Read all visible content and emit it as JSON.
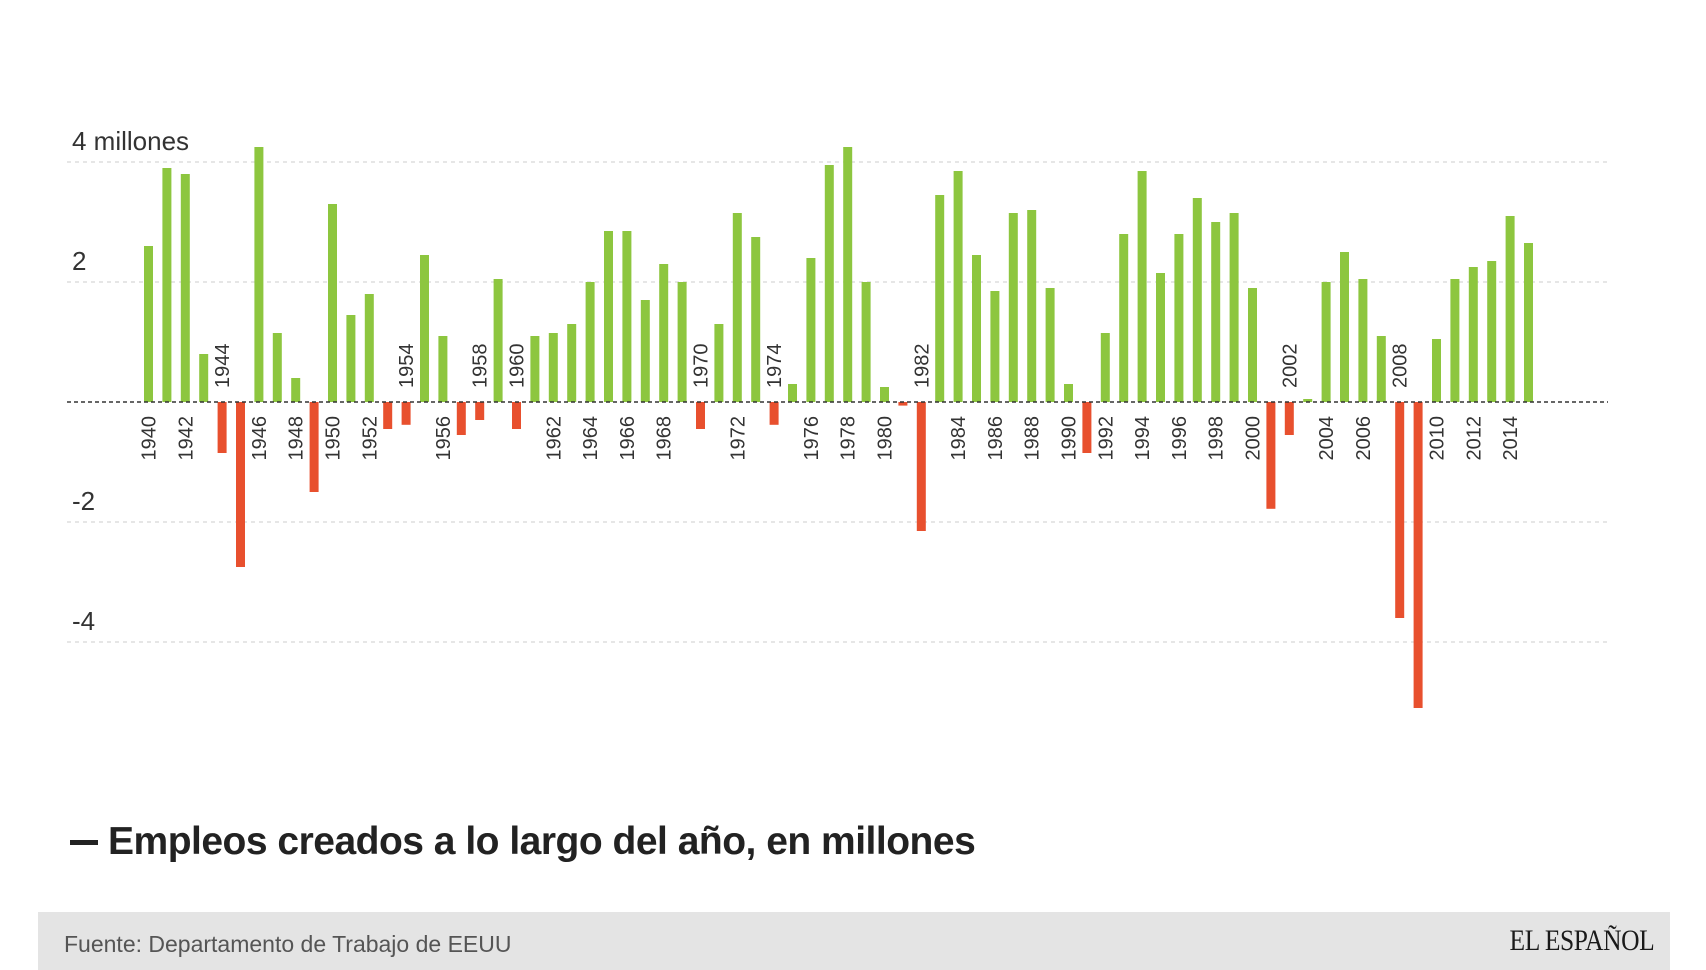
{
  "colors": {
    "positive": "#8dc63f",
    "negative": "#e8502e",
    "grid": "#cccccc",
    "baseline": "#333333"
  },
  "legend": {
    "label": "Empleos creados a lo largo del año, en millones"
  },
  "footer": {
    "source": "Fuente: Departamento de Trabajo de EEUU",
    "logo": "EL ESPAÑOL"
  },
  "chart_data": {
    "type": "bar",
    "title": "",
    "xlabel": "",
    "ylabel": "",
    "ylim": [
      -5.2,
      4.3
    ],
    "grid": "horizontal dashed",
    "y_ticks": [
      {
        "value": 4,
        "label": "4 millones"
      },
      {
        "value": 2,
        "label": "2"
      },
      {
        "value": -2,
        "label": "-2"
      },
      {
        "value": -4,
        "label": "-4"
      }
    ],
    "categories": [
      1940,
      1941,
      1942,
      1943,
      1944,
      1945,
      1946,
      1947,
      1948,
      1949,
      1950,
      1951,
      1952,
      1953,
      1954,
      1955,
      1956,
      1957,
      1958,
      1959,
      1960,
      1961,
      1962,
      1963,
      1964,
      1965,
      1966,
      1967,
      1968,
      1969,
      1970,
      1971,
      1972,
      1973,
      1974,
      1975,
      1976,
      1977,
      1978,
      1979,
      1980,
      1981,
      1982,
      1983,
      1984,
      1985,
      1986,
      1987,
      1988,
      1989,
      1990,
      1991,
      1992,
      1993,
      1994,
      1995,
      1996,
      1997,
      1998,
      1999,
      2000,
      2001,
      2002,
      2003,
      2004,
      2005,
      2006,
      2007,
      2008,
      2009,
      2010,
      2011,
      2012,
      2013,
      2014,
      2015
    ],
    "values": [
      2.6,
      3.9,
      3.8,
      0.8,
      -0.85,
      -2.75,
      4.25,
      1.15,
      0.4,
      -1.5,
      3.3,
      1.45,
      1.8,
      -0.45,
      -0.38,
      2.45,
      1.1,
      -0.55,
      -0.3,
      2.05,
      -0.45,
      1.1,
      1.15,
      1.3,
      2.0,
      2.85,
      2.85,
      1.7,
      2.3,
      2.0,
      -0.45,
      1.3,
      3.15,
      2.75,
      -0.38,
      0.3,
      2.4,
      3.95,
      4.25,
      2.0,
      0.25,
      -0.06,
      -2.15,
      3.45,
      3.85,
      2.45,
      1.85,
      3.15,
      3.2,
      1.9,
      0.3,
      -0.85,
      1.15,
      2.8,
      3.85,
      2.15,
      2.8,
      3.4,
      3.0,
      3.15,
      1.9,
      -1.78,
      -0.55,
      0.05,
      2.0,
      2.5,
      2.05,
      1.1,
      -3.6,
      -5.1,
      1.05,
      2.05,
      2.25,
      2.35,
      3.1,
      2.65
    ],
    "labels_below": [
      "1940",
      "1942",
      "1946",
      "1948",
      "1950",
      "1952",
      "1956",
      "1962",
      "1964",
      "1966",
      "1968",
      "1972",
      "1976",
      "1978",
      "1980",
      "1984",
      "1986",
      "1988",
      "1990",
      "1992",
      "1994",
      "1996",
      "1998",
      "2000",
      "2004",
      "2006",
      "2010",
      "2012",
      "2014"
    ],
    "labels_above": [
      "1944",
      "1954",
      "1958",
      "1960",
      "1970",
      "1974",
      "1982",
      "2002",
      "2008"
    ]
  }
}
